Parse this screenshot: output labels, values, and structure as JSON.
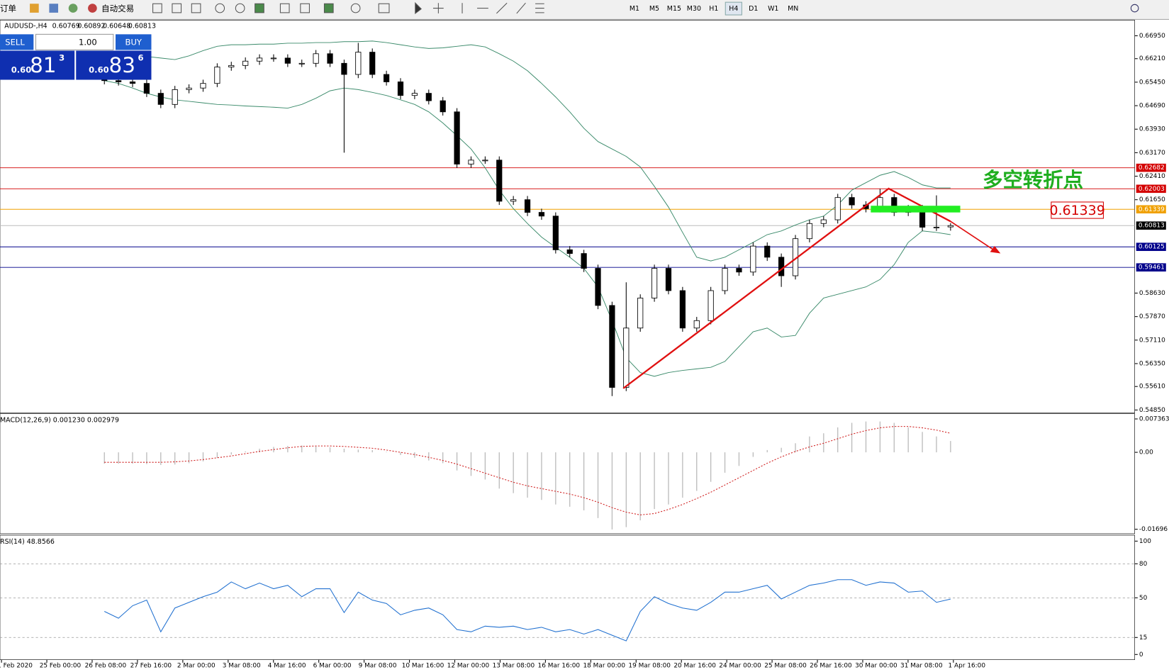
{
  "toolbar": {
    "orders": "订单",
    "auto_trading": "自动交易",
    "timeframes": [
      "M1",
      "M5",
      "M15",
      "M30",
      "H1",
      "H4",
      "D1",
      "W1",
      "MN"
    ]
  },
  "trade_panel": {
    "sell": "SELL",
    "lots": "1.00",
    "buy": "BUY",
    "bid_prefix": "0.60",
    "bid_big": "81",
    "bid_small": "3",
    "ask_prefix": "0.60",
    "ask_big": "83",
    "ask_small": "6"
  },
  "chart": {
    "symbol": "AUDUSD-,H4",
    "open": 0.60769,
    "high": 0.60892,
    "low": 0.60648,
    "close": 0.60813,
    "ylim": [
      0.54778,
      0.67432
    ],
    "yticks": [
      {
        "value": 0.6695,
        "label": "0.66950"
      },
      {
        "value": 0.6621,
        "label": "0.66210"
      },
      {
        "value": 0.6545,
        "label": "0.65450"
      },
      {
        "value": 0.6469,
        "label": "0.64690"
      },
      {
        "value": 0.6393,
        "label": "0.63930"
      },
      {
        "value": 0.6317,
        "label": "0.63170"
      },
      {
        "value": 0.6241,
        "label": "0.62410"
      },
      {
        "value": 0.6165,
        "label": "0.61650"
      },
      {
        "value": 0.5863,
        "label": "0.58630"
      },
      {
        "value": 0.5787,
        "label": "0.57870"
      },
      {
        "value": 0.5711,
        "label": "0.57110"
      },
      {
        "value": 0.5635,
        "label": "0.56350"
      },
      {
        "value": 0.5561,
        "label": "0.55610"
      },
      {
        "value": 0.5485,
        "label": "0.54850"
      }
    ],
    "levels": [
      {
        "value": 0.62682,
        "color": "#d40000"
      },
      {
        "value": 0.62003,
        "color": "#d40000"
      },
      {
        "value": 0.61339,
        "color": "#f0a000"
      },
      {
        "value": 0.60813,
        "color": "#000000"
      },
      {
        "value": 0.60125,
        "color": "#00008b"
      },
      {
        "value": 0.59461,
        "color": "#00008b"
      }
    ],
    "candles": {
      "open": [
        0.6556,
        0.655,
        0.6546,
        0.6541,
        0.6509,
        0.6473,
        0.6521,
        0.6526,
        0.6541,
        0.6594,
        0.6599,
        0.6613,
        0.6623,
        0.6623,
        0.6606,
        0.6606,
        0.6637,
        0.6606,
        0.657,
        0.6642,
        0.657,
        0.6546,
        0.6502,
        0.6509,
        0.6485,
        0.6449,
        0.628,
        0.6293,
        0.6293,
        0.616,
        0.6165,
        0.6124,
        0.6112,
        0.6003,
        0.5991,
        0.5943,
        0.5823,
        0.5558,
        0.575,
        0.5847,
        0.5943,
        0.5871,
        0.575,
        0.5774,
        0.5871,
        0.5943,
        0.5931,
        0.6015,
        0.5979,
        0.5919,
        0.6039,
        0.6088,
        0.61,
        0.6172,
        0.6148,
        0.6136,
        0.6172,
        0.6124,
        0.6136,
        0.6076,
        0.60769
      ],
      "high": [
        0.6568,
        0.6562,
        0.6558,
        0.6553,
        0.6521,
        0.6533,
        0.6538,
        0.6553,
        0.6606,
        0.6611,
        0.6625,
        0.6635,
        0.6635,
        0.6635,
        0.6618,
        0.6649,
        0.6649,
        0.6618,
        0.6672,
        0.6654,
        0.6582,
        0.6558,
        0.6521,
        0.6521,
        0.6497,
        0.6461,
        0.6305,
        0.6305,
        0.6305,
        0.6177,
        0.6177,
        0.6136,
        0.6124,
        0.6015,
        0.6003,
        0.5955,
        0.5835,
        0.5898,
        0.5859,
        0.5955,
        0.5955,
        0.5883,
        0.5786,
        0.5883,
        0.5955,
        0.5955,
        0.6027,
        0.6027,
        0.5991,
        0.6051,
        0.61,
        0.6112,
        0.6184,
        0.6184,
        0.616,
        0.62,
        0.6184,
        0.6148,
        0.6148,
        0.6179,
        0.60892
      ],
      "low": [
        0.6538,
        0.6534,
        0.6529,
        0.6497,
        0.6461,
        0.6461,
        0.6509,
        0.6514,
        0.6529,
        0.6582,
        0.6587,
        0.6601,
        0.6611,
        0.6594,
        0.6594,
        0.6594,
        0.6594,
        0.6317,
        0.6558,
        0.6558,
        0.6534,
        0.649,
        0.649,
        0.6473,
        0.6437,
        0.6268,
        0.6268,
        0.6281,
        0.6148,
        0.6148,
        0.6112,
        0.61,
        0.5991,
        0.5979,
        0.5931,
        0.5811,
        0.553,
        0.5546,
        0.5738,
        0.5835,
        0.5859,
        0.5738,
        0.5738,
        0.5762,
        0.5859,
        0.5919,
        0.5919,
        0.5967,
        0.5883,
        0.5907,
        0.6027,
        0.6076,
        0.6088,
        0.6136,
        0.6124,
        0.6124,
        0.6112,
        0.6112,
        0.6064,
        0.6064,
        0.60648
      ],
      "close": [
        0.655,
        0.6546,
        0.6541,
        0.6509,
        0.6473,
        0.6521,
        0.6526,
        0.6541,
        0.6594,
        0.6599,
        0.6613,
        0.6623,
        0.6623,
        0.6606,
        0.6606,
        0.6637,
        0.6606,
        0.657,
        0.6642,
        0.657,
        0.6546,
        0.6502,
        0.6509,
        0.6485,
        0.6449,
        0.628,
        0.6293,
        0.6293,
        0.616,
        0.6165,
        0.6124,
        0.6112,
        0.6003,
        0.5991,
        0.5943,
        0.5823,
        0.5558,
        0.575,
        0.5847,
        0.5943,
        0.5871,
        0.575,
        0.5774,
        0.5871,
        0.5943,
        0.5931,
        0.6015,
        0.5979,
        0.5919,
        0.6039,
        0.6088,
        0.61,
        0.6172,
        0.6148,
        0.6136,
        0.6172,
        0.6124,
        0.6136,
        0.6076,
        0.6076,
        0.60813
      ]
    },
    "bands": {
      "color": "#3a8a6a",
      "upper": [
        0.6642,
        0.6637,
        0.6632,
        0.6628,
        0.6623,
        0.6618,
        0.663,
        0.6647,
        0.6661,
        0.6666,
        0.6666,
        0.6668,
        0.6668,
        0.6671,
        0.6671,
        0.6673,
        0.6673,
        0.6676,
        0.6676,
        0.6678,
        0.6673,
        0.6666,
        0.6659,
        0.6654,
        0.6656,
        0.6661,
        0.6666,
        0.6659,
        0.6637,
        0.6613,
        0.6582,
        0.6541,
        0.6497,
        0.6449,
        0.6396,
        0.6353,
        0.6329,
        0.6305,
        0.6271,
        0.6208,
        0.6141,
        0.6059,
        0.5979,
        0.5967,
        0.5979,
        0.6003,
        0.6027,
        0.6052,
        0.6064,
        0.6083,
        0.61,
        0.6112,
        0.6148,
        0.6196,
        0.622,
        0.6244,
        0.6256,
        0.6237,
        0.6213,
        0.6203,
        0.6203
      ],
      "lower": [
        0.655,
        0.6541,
        0.6526,
        0.6509,
        0.6497,
        0.6488,
        0.6483,
        0.6478,
        0.6473,
        0.6471,
        0.6468,
        0.6466,
        0.6464,
        0.6461,
        0.6473,
        0.6493,
        0.6517,
        0.6526,
        0.6521,
        0.6512,
        0.6502,
        0.6488,
        0.6473,
        0.6449,
        0.6413,
        0.6372,
        0.6329,
        0.6268,
        0.6196,
        0.6136,
        0.6088,
        0.6044,
        0.6011,
        0.5979,
        0.5943,
        0.5883,
        0.5774,
        0.5654,
        0.5606,
        0.5594,
        0.5606,
        0.5613,
        0.5618,
        0.5623,
        0.5642,
        0.569,
        0.5738,
        0.575,
        0.5721,
        0.5726,
        0.5798,
        0.5847,
        0.5859,
        0.5871,
        0.5883,
        0.5907,
        0.5955,
        0.6027,
        0.6064,
        0.6059,
        0.6052
      ]
    },
    "annotation": {
      "text": "多空转折点",
      "price": 0.61339
    }
  },
  "macd": {
    "label": "MACD(12,26,9) 0.001230 0.002979",
    "ylim": [
      -0.01795,
      0.00835
    ],
    "yticks": [
      {
        "value": 0.007363,
        "label": "0.007363"
      },
      {
        "value": 0,
        "label": "0.00"
      },
      {
        "value": -0.01696,
        "label": "-0.01696"
      }
    ],
    "histogram": [
      -0.0025,
      -0.0025,
      -0.0025,
      -0.0026,
      -0.0028,
      -0.0027,
      -0.0024,
      -0.002,
      -0.0012,
      -0.0005,
      0.0002,
      0.0008,
      0.0012,
      0.0014,
      0.0015,
      0.0013,
      0.0011,
      0.0008,
      0.0006,
      0.0005,
      0.0001,
      -0.0006,
      -0.0012,
      -0.0018,
      -0.0024,
      -0.004,
      -0.0052,
      -0.006,
      -0.008,
      -0.009,
      -0.01,
      -0.0105,
      -0.0115,
      -0.012,
      -0.0128,
      -0.0145,
      -0.017,
      -0.0165,
      -0.015,
      -0.0125,
      -0.0115,
      -0.01,
      -0.0085,
      -0.0065,
      -0.0045,
      -0.003,
      -0.001,
      0.0005,
      0.001,
      0.002,
      0.0035,
      0.0042,
      0.0055,
      0.0065,
      0.0068,
      0.0068,
      0.0065,
      0.0055,
      0.0045,
      0.0035,
      0.0025
    ],
    "signal": [
      -0.0022,
      -0.0022,
      -0.0022,
      -0.0022,
      -0.0022,
      -0.0021,
      -0.0019,
      -0.0016,
      -0.0012,
      -0.0008,
      -0.0003,
      0.0002,
      0.0006,
      0.001,
      0.0013,
      0.0014,
      0.0014,
      0.0013,
      0.0011,
      0.0009,
      0.0005,
      0,
      -0.0005,
      -0.0011,
      -0.0018,
      -0.0026,
      -0.0036,
      -0.0046,
      -0.0056,
      -0.0066,
      -0.0074,
      -0.008,
      -0.0086,
      -0.0092,
      -0.01,
      -0.011,
      -0.0122,
      -0.0132,
      -0.0138,
      -0.0135,
      -0.0126,
      -0.0115,
      -0.0102,
      -0.0088,
      -0.0072,
      -0.0056,
      -0.004,
      -0.0024,
      -0.001,
      0.0002,
      0.0012,
      0.002,
      0.003,
      0.004,
      0.0048,
      0.0054,
      0.0057,
      0.0057,
      0.0054,
      0.0049,
      0.0042
    ]
  },
  "rsi": {
    "label": "RSI(14) 48.8566",
    "ylim": [
      -4.6,
      103.9
    ],
    "yticks": [
      100,
      80,
      50,
      15,
      0
    ],
    "dashed": [
      80,
      50,
      15
    ],
    "values": [
      38,
      32,
      43,
      48,
      20,
      41,
      46,
      51,
      55,
      64,
      58,
      63,
      58,
      61,
      51,
      58,
      58,
      37,
      55,
      48,
      45,
      35,
      39,
      41,
      35,
      22,
      20,
      25,
      24,
      25,
      22,
      24,
      20,
      22,
      18,
      22,
      17,
      12,
      38,
      51,
      45,
      41,
      39,
      46,
      55,
      55,
      58,
      61,
      49,
      55,
      61,
      63,
      66,
      66,
      61,
      64,
      63,
      55,
      56,
      46,
      48.8566
    ]
  },
  "time_axis": [
    "1 Feb 2020",
    "25 Feb 00:00",
    "26 Feb 08:00",
    "27 Feb 16:00",
    "2 Mar 00:00",
    "3 Mar 08:00",
    "4 Mar 16:00",
    "6 Mar 00:00",
    "9 Mar 08:00",
    "10 Mar 16:00",
    "12 Mar 00:00",
    "13 Mar 08:00",
    "16 Mar 16:00",
    "18 Mar 00:00",
    "19 Mar 08:00",
    "20 Mar 16:00",
    "24 Mar 00:00",
    "25 Mar 08:00",
    "26 Mar 16:00",
    "30 Mar 00:00",
    "31 Mar 08:00",
    "1 Apr 16:00"
  ]
}
